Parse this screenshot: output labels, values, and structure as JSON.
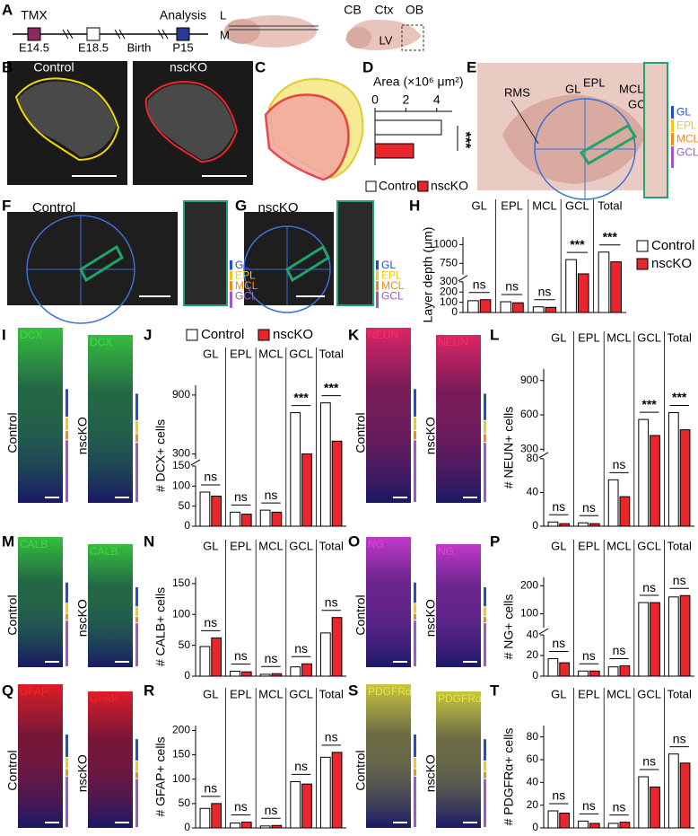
{
  "panel_labels": [
    "A",
    "B",
    "C",
    "D",
    "E",
    "F",
    "G",
    "H",
    "I",
    "J",
    "K",
    "L",
    "M",
    "N",
    "O",
    "P",
    "Q",
    "R",
    "S",
    "T"
  ],
  "timeline": {
    "start": "TMX",
    "events": [
      "E14.5",
      "E18.5",
      "Birth",
      "P15"
    ],
    "end": "Analysis"
  },
  "brain_schematic": {
    "axis": [
      "L",
      "M"
    ],
    "regions": [
      "CB",
      "Ctx",
      "OB",
      "LV"
    ]
  },
  "panel_B": {
    "labels": [
      "Control",
      "nscKO"
    ]
  },
  "panel_E": {
    "labels": [
      "RMS",
      "GL",
      "EPL",
      "MCL",
      "GCL"
    ],
    "layers": [
      "GL",
      "EPL",
      "MCL",
      "GCL"
    ]
  },
  "panel_F": {
    "label": "Control",
    "layers": [
      "GL",
      "EPL",
      "MCL",
      "GCL"
    ]
  },
  "panel_G": {
    "label": "nscKO",
    "layers": [
      "GL",
      "EPL",
      "MCL",
      "GCL"
    ]
  },
  "stains": [
    {
      "marker": "DCX",
      "color": "#3ddc3d",
      "conditions": [
        "Control",
        "nscKO"
      ]
    },
    {
      "marker": "NEUN",
      "color": "#ff2a6a",
      "conditions": [
        "Control",
        "nscKO"
      ]
    },
    {
      "marker": "CALB",
      "color": "#3ddc3d",
      "conditions": [
        "Control",
        "nscKO"
      ]
    },
    {
      "marker": "NG",
      "color": "#e040e0",
      "conditions": [
        "Control",
        "nscKO"
      ]
    },
    {
      "marker": "GFAP",
      "color": "#ff2020",
      "conditions": [
        "Control",
        "nscKO"
      ]
    },
    {
      "marker": "PDGFRα",
      "color": "#e6e63c",
      "conditions": [
        "Control",
        "nscKO"
      ]
    }
  ],
  "chart_data": [
    {
      "type": "hbar",
      "xlabel": "Area (×10⁶ μm²)",
      "series": [
        {
          "name": "Control",
          "color": "#ffffff",
          "values": [
            4.3
          ]
        },
        {
          "name": "nscKO",
          "color": "#e8262c",
          "values": [
            2.5
          ]
        }
      ],
      "xlim": [
        0,
        5
      ],
      "xticks": [
        0,
        2,
        4
      ],
      "significance": "***",
      "legend": "bottom"
    },
    {
      "type": "bar",
      "ylabel": "Layer depth (μm)",
      "categories": [
        "GL",
        "EPL",
        "MCL",
        "GCL",
        "Total"
      ],
      "series": [
        {
          "name": "Control",
          "color": "#ffffff",
          "values": [
            115,
            105,
            55,
            800,
            900
          ]
        },
        {
          "name": "nscKO",
          "color": "#e8262c",
          "values": [
            125,
            95,
            50,
            610,
            770
          ]
        }
      ],
      "ylim": [
        [
          0,
          300
        ],
        [
          600,
          1100
        ]
      ],
      "yticks": [
        0,
        100,
        200,
        300,
        750,
        1000
      ],
      "significance": [
        "ns",
        "ns",
        "ns",
        "***",
        "***"
      ],
      "legend": "right"
    },
    {
      "type": "bar",
      "ylabel": "# DCX+ cells",
      "categories": [
        "GL",
        "EPL",
        "MCL",
        "GCL",
        "Total"
      ],
      "series": [
        {
          "name": "Control",
          "color": "#ffffff",
          "values": [
            85,
            35,
            40,
            720,
            820
          ]
        },
        {
          "name": "nscKO",
          "color": "#e8262c",
          "values": [
            75,
            30,
            35,
            300,
            430
          ]
        }
      ],
      "ylim": [
        [
          0,
          150
        ],
        [
          250,
          1000
        ]
      ],
      "yticks": [
        0,
        50,
        100,
        150,
        300,
        900
      ],
      "significance": [
        "ns",
        "ns",
        "ns",
        "***",
        "***"
      ],
      "legend": "top"
    },
    {
      "type": "bar",
      "ylabel": "# NEUN+ cells",
      "categories": [
        "GL",
        "EPL",
        "MCL",
        "GCL",
        "Total"
      ],
      "series": [
        {
          "color": "#ffffff",
          "values": [
            5,
            4,
            55,
            560,
            620
          ]
        },
        {
          "color": "#e8262c",
          "values": [
            3,
            3,
            35,
            420,
            470
          ]
        }
      ],
      "ylim": [
        [
          0,
          80
        ],
        [
          280,
          1000
        ]
      ],
      "yticks": [
        0,
        40,
        80,
        300,
        600,
        900
      ],
      "significance": [
        "ns",
        "ns",
        "ns",
        "***",
        "***"
      ]
    },
    {
      "type": "bar",
      "ylabel": "# CALB+ cells",
      "categories": [
        "GL",
        "EPL",
        "MCL",
        "GCL",
        "Total"
      ],
      "series": [
        {
          "color": "#ffffff",
          "values": [
            48,
            8,
            3,
            15,
            70
          ]
        },
        {
          "color": "#e8262c",
          "values": [
            62,
            7,
            4,
            20,
            95
          ]
        }
      ],
      "ylim": [
        0,
        160
      ],
      "yticks": [
        0,
        50,
        100,
        150
      ],
      "significance": [
        "ns",
        "ns",
        "ns",
        "ns",
        "ns"
      ]
    },
    {
      "type": "bar",
      "ylabel": "# NG+ cells",
      "categories": [
        "GL",
        "EPL",
        "MCL",
        "GCL",
        "Total"
      ],
      "series": [
        {
          "color": "#ffffff",
          "values": [
            17,
            5,
            9,
            140,
            160
          ]
        },
        {
          "color": "#e8262c",
          "values": [
            13,
            5,
            10,
            140,
            165
          ]
        }
      ],
      "ylim": [
        [
          0,
          40
        ],
        [
          50,
          230
        ]
      ],
      "yticks": [
        0,
        20,
        40,
        100,
        200
      ],
      "significance": [
        "ns",
        "ns",
        "ns",
        "ns",
        "ns"
      ]
    },
    {
      "type": "bar",
      "ylabel": "# GFAP+ cells",
      "categories": [
        "GL",
        "EPL",
        "MCL",
        "GCL",
        "Total"
      ],
      "series": [
        {
          "color": "#ffffff",
          "values": [
            40,
            10,
            4,
            95,
            145
          ]
        },
        {
          "color": "#e8262c",
          "values": [
            50,
            12,
            5,
            90,
            155
          ]
        }
      ],
      "ylim": [
        0,
        210
      ],
      "yticks": [
        0,
        50,
        100,
        150,
        200
      ],
      "significance": [
        "ns",
        "ns",
        "ns",
        "ns",
        "ns"
      ]
    },
    {
      "type": "bar",
      "ylabel": "# PDGFRα+ cells",
      "categories": [
        "GL",
        "EPL",
        "MCL",
        "GCL",
        "Total"
      ],
      "series": [
        {
          "color": "#ffffff",
          "values": [
            15,
            6,
            4,
            45,
            65
          ]
        },
        {
          "color": "#e8262c",
          "values": [
            13,
            4,
            5,
            36,
            57
          ]
        }
      ],
      "ylim": [
        0,
        90
      ],
      "yticks": [
        0,
        20,
        40,
        60,
        80
      ],
      "significance": [
        "ns",
        "ns",
        "ns",
        "ns",
        "ns"
      ]
    }
  ]
}
